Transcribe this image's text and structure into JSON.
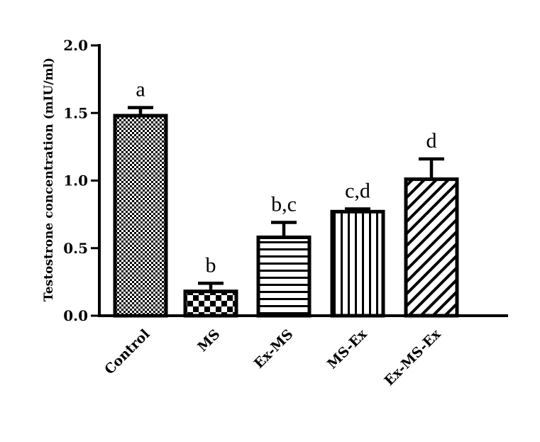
{
  "chart_data": {
    "type": "bar",
    "ylabel": "Testostrone concentration (mIU/ml)",
    "xlabel": "",
    "ylim": [
      0,
      2.0
    ],
    "yticks": [
      "0.0",
      "0.5",
      "1.0",
      "1.5",
      "2.0"
    ],
    "ytick_values": [
      0,
      0.5,
      1.0,
      1.5,
      2.0
    ],
    "categories": [
      "Control",
      "MS",
      "Ex-MS",
      "MS-Ex",
      "Ex-MS-Ex"
    ],
    "values": [
      1.48,
      0.18,
      0.58,
      0.77,
      1.01
    ],
    "errors": [
      0.06,
      0.06,
      0.11,
      0.02,
      0.15
    ],
    "significance_labels": [
      "a",
      "b",
      "b,c",
      "c,d",
      "d"
    ],
    "patterns": [
      "checker-fine",
      "checker-coarse",
      "horizontal-lines",
      "vertical-lines",
      "diagonal-lines"
    ],
    "bar_color": "#000000",
    "background": "#ffffff",
    "grid": false,
    "legend": "none"
  }
}
